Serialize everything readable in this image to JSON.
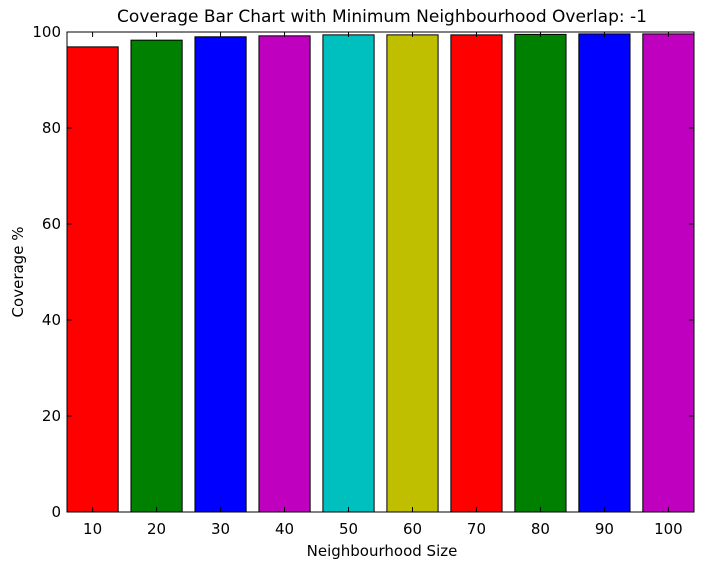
{
  "chart_data": {
    "type": "bar",
    "title": "Coverage Bar Chart with Minimum Neighbourhood Overlap: -1",
    "xlabel": "Neighbourhood Size",
    "ylabel": "Coverage %",
    "categories": [
      "10",
      "20",
      "30",
      "40",
      "50",
      "60",
      "70",
      "80",
      "90",
      "100"
    ],
    "values": [
      96.9,
      98.3,
      99.0,
      99.2,
      99.4,
      99.4,
      99.4,
      99.5,
      99.6,
      99.6
    ],
    "colors": [
      "#ff0000",
      "#008000",
      "#0000ff",
      "#bf00bf",
      "#00bfbf",
      "#bfbf00",
      "#ff0000",
      "#008000",
      "#0000ff",
      "#bf00bf"
    ],
    "ylim": [
      0,
      100
    ],
    "yticks": [
      "0",
      "20",
      "40",
      "60",
      "80",
      "100"
    ],
    "grid": false,
    "legend": "none"
  }
}
